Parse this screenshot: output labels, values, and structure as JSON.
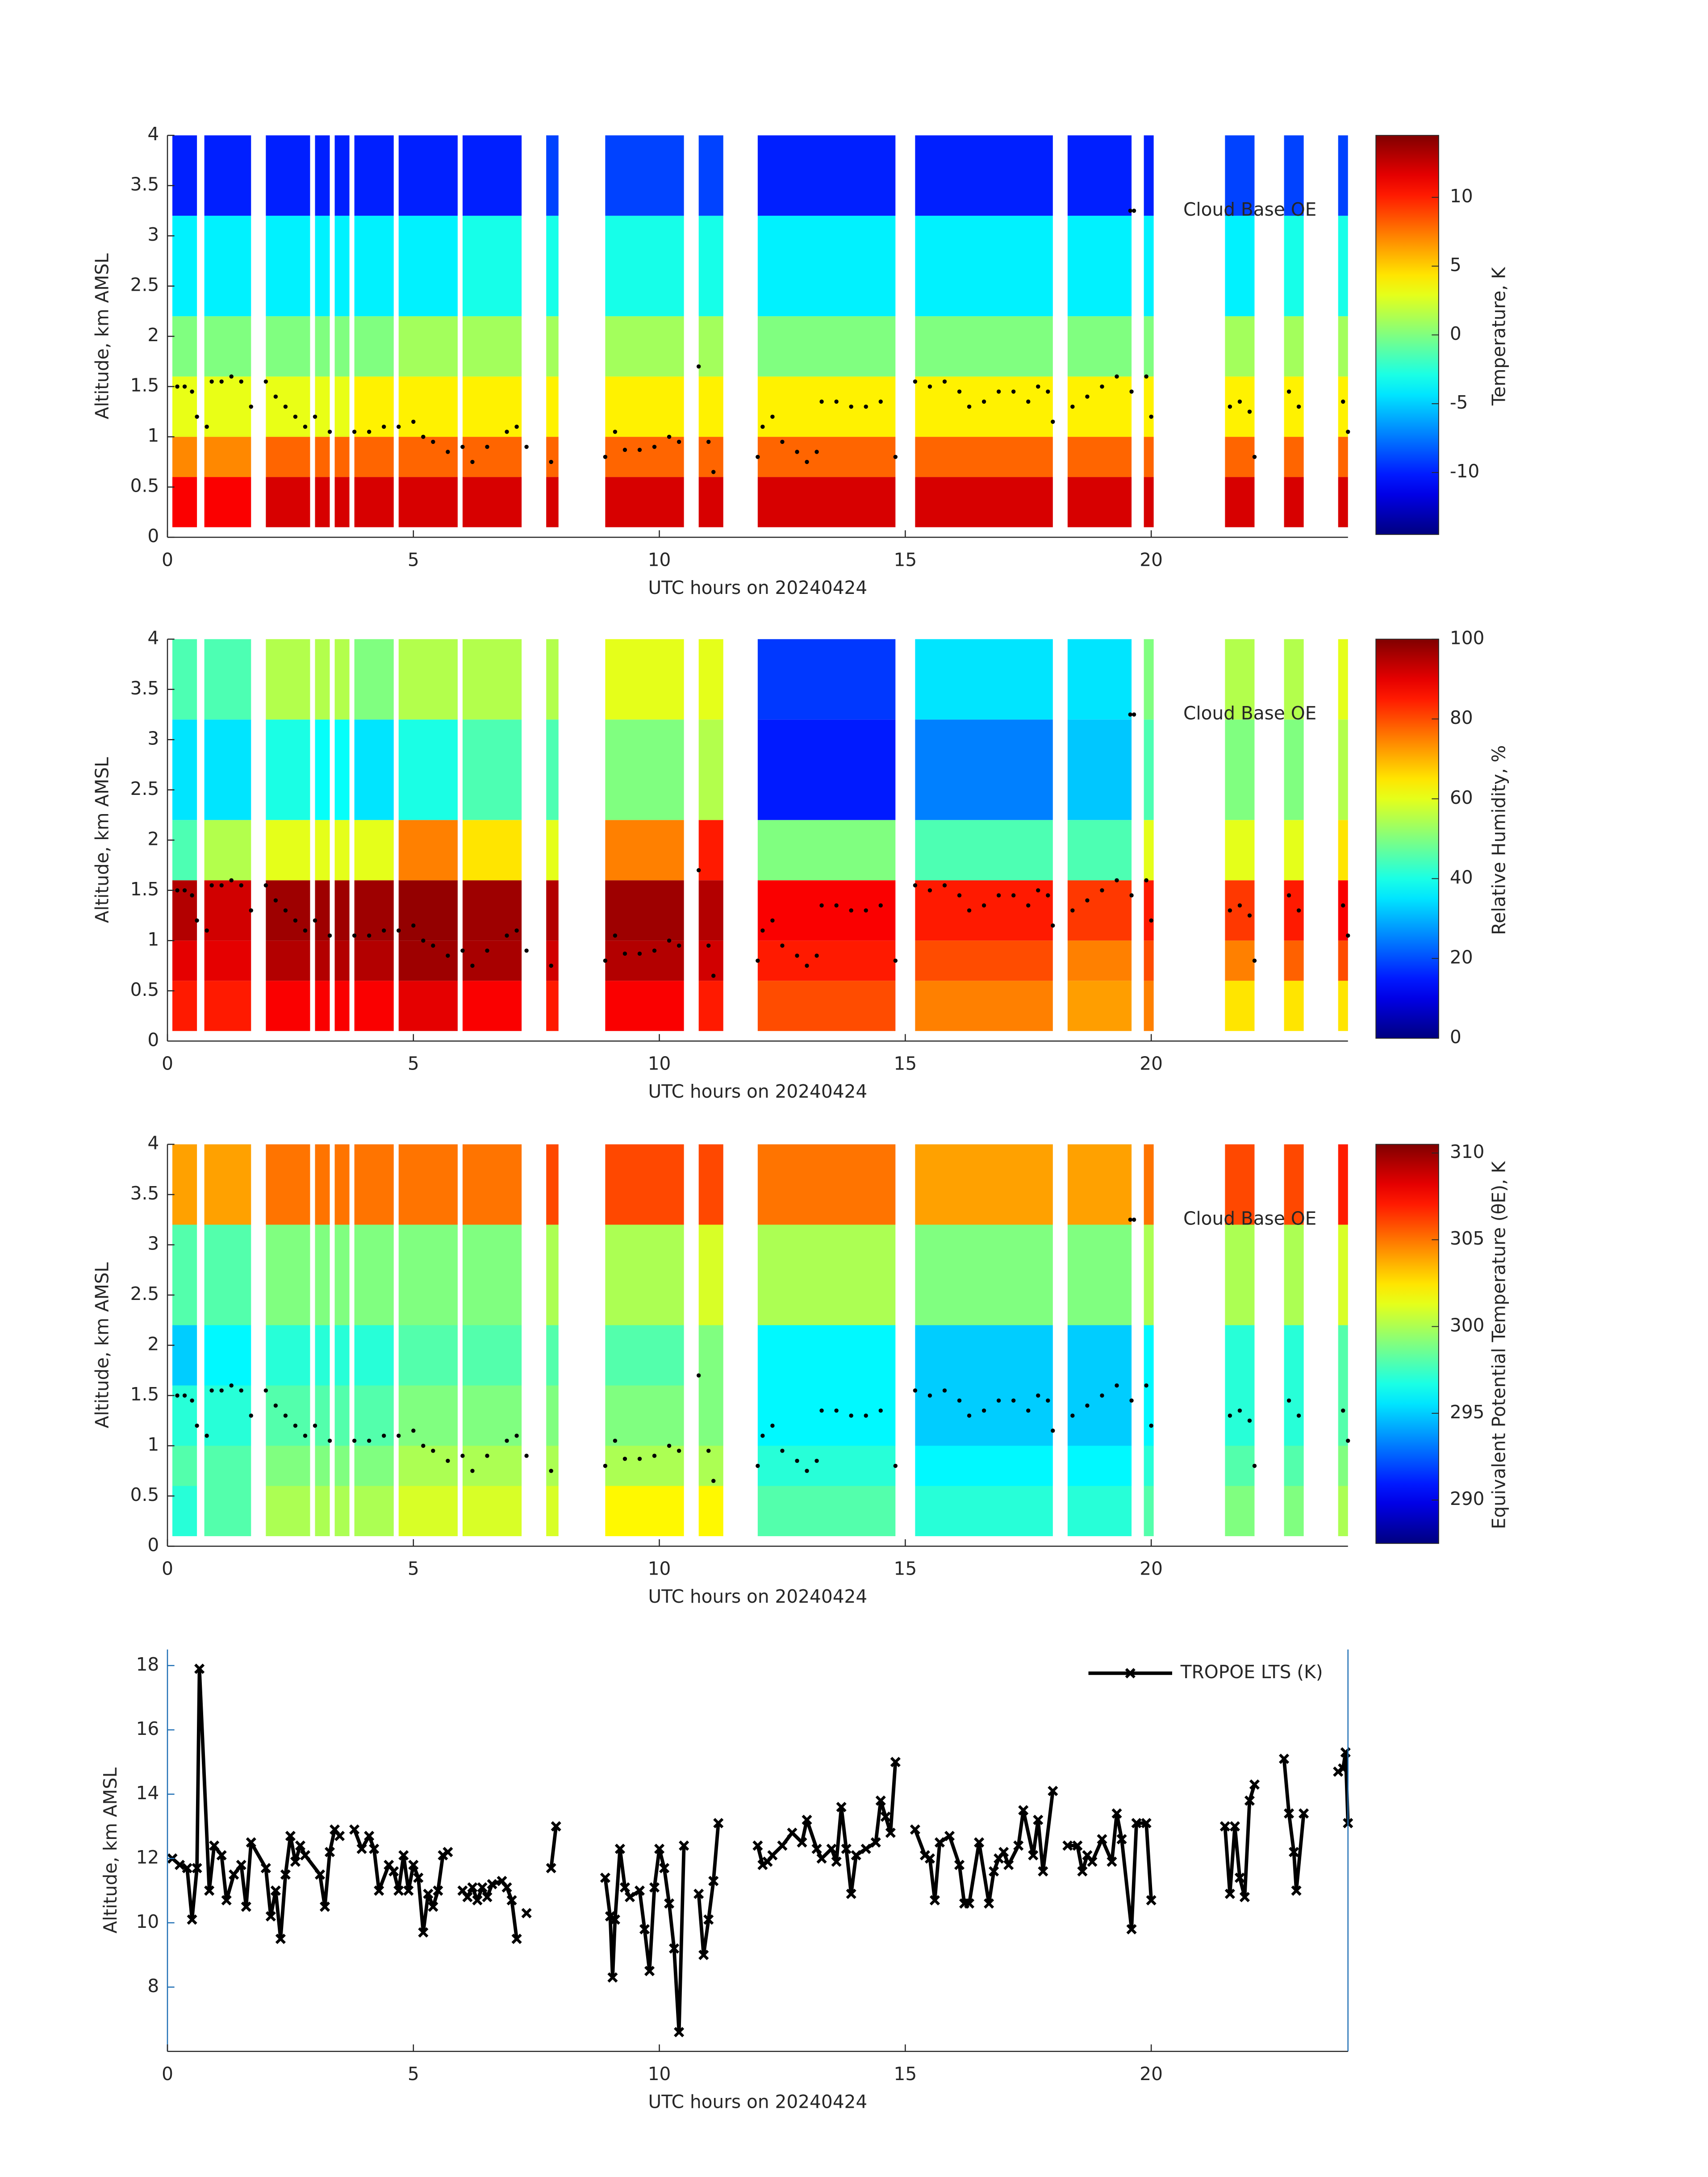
{
  "time_segments": [
    [
      0.1,
      0.6
    ],
    [
      0.75,
      1.7
    ],
    [
      2.0,
      2.9
    ],
    [
      3.0,
      3.3
    ],
    [
      3.4,
      3.7
    ],
    [
      3.8,
      4.6
    ],
    [
      4.7,
      5.9
    ],
    [
      6.0,
      7.2
    ],
    [
      7.7,
      7.95
    ],
    [
      8.9,
      10.5
    ],
    [
      10.8,
      11.3
    ],
    [
      12.0,
      14.8
    ],
    [
      15.2,
      18.0
    ],
    [
      18.3,
      19.6
    ],
    [
      19.85,
      20.05
    ],
    [
      21.5,
      22.1
    ],
    [
      22.7,
      23.1
    ],
    [
      23.8,
      24.0
    ]
  ],
  "altitude_edges": [
    0.1,
    0.6,
    1.0,
    1.6,
    2.2,
    3.2,
    4.0
  ],
  "cloud_base": {
    "name": "Cloud Base OE",
    "x": [
      0.2,
      0.35,
      0.5,
      0.6,
      0.8,
      0.9,
      1.1,
      1.3,
      1.5,
      1.7,
      2.0,
      2.2,
      2.4,
      2.6,
      2.8,
      3.0,
      3.3,
      3.8,
      4.1,
      4.4,
      4.7,
      5.0,
      5.2,
      5.4,
      5.7,
      6.0,
      6.2,
      6.5,
      6.9,
      7.1,
      7.3,
      7.8,
      8.9,
      9.1,
      9.3,
      9.6,
      9.9,
      10.2,
      10.4,
      10.8,
      11.0,
      11.1,
      12.0,
      12.1,
      12.3,
      12.5,
      12.8,
      13.0,
      13.2,
      13.3,
      13.6,
      13.9,
      14.2,
      14.5,
      14.8,
      15.2,
      15.5,
      15.8,
      16.1,
      16.3,
      16.6,
      16.9,
      17.2,
      17.5,
      17.7,
      17.9,
      18.0,
      18.4,
      18.7,
      19.0,
      19.3,
      19.6,
      19.65,
      19.9,
      20.0,
      21.6,
      21.8,
      22.0,
      22.1,
      22.8,
      23.0,
      23.9,
      24.0
    ],
    "values": [
      1.5,
      1.5,
      1.45,
      1.2,
      1.1,
      1.55,
      1.55,
      1.6,
      1.55,
      1.3,
      1.55,
      1.4,
      1.3,
      1.2,
      1.1,
      1.2,
      1.05,
      1.05,
      1.05,
      1.1,
      1.1,
      1.15,
      1.0,
      0.95,
      0.85,
      0.9,
      0.75,
      0.9,
      1.05,
      1.1,
      0.9,
      0.75,
      0.8,
      1.05,
      0.87,
      0.87,
      0.9,
      1.0,
      0.95,
      1.7,
      0.95,
      0.65,
      0.8,
      1.1,
      1.2,
      0.95,
      0.85,
      0.75,
      0.85,
      1.35,
      1.35,
      1.3,
      1.3,
      1.35,
      0.8,
      1.55,
      1.5,
      1.55,
      1.45,
      1.3,
      1.35,
      1.45,
      1.45,
      1.35,
      1.5,
      1.45,
      1.15,
      1.3,
      1.4,
      1.5,
      1.6,
      1.45,
      3.25,
      1.6,
      1.2,
      1.3,
      1.35,
      1.25,
      0.8,
      1.45,
      1.3,
      1.35,
      1.05
    ]
  },
  "chart_data": [
    {
      "type": "heatmap",
      "xlabel": "UTC hours on 20240424",
      "ylabel": "Altitude, km AMSL",
      "colorbar_label": "Temperature, K",
      "colormap": "jet",
      "legend": "upper right",
      "xlim": [
        0,
        24
      ],
      "xticks": [
        0,
        5,
        10,
        15,
        20
      ],
      "ylim": [
        0,
        4
      ],
      "yticks": [
        0,
        0.5,
        1,
        1.5,
        2,
        2.5,
        3,
        3.5,
        4
      ],
      "clim": [
        -14.5,
        14.5
      ],
      "cticks": [
        -10,
        -5,
        0,
        5,
        10
      ],
      "values": [
        [
          11,
          7,
          3,
          0,
          -4,
          -10
        ],
        [
          11,
          7,
          3,
          0,
          -4,
          -10
        ],
        [
          12,
          8,
          3,
          0,
          -4,
          -10
        ],
        [
          12,
          8,
          3,
          0,
          -4,
          -10
        ],
        [
          12,
          8,
          3,
          0,
          -4,
          -10
        ],
        [
          12,
          8,
          4,
          0,
          -4,
          -10
        ],
        [
          12,
          8,
          4,
          1,
          -4,
          -10
        ],
        [
          12,
          8,
          4,
          1,
          -3,
          -10
        ],
        [
          12,
          8,
          4,
          1,
          -3,
          -9
        ],
        [
          12,
          8,
          4,
          1,
          -3,
          -9
        ],
        [
          12,
          8,
          4,
          1,
          -3,
          -9
        ],
        [
          12,
          8,
          4,
          0,
          -4,
          -10
        ],
        [
          12,
          8,
          4,
          0,
          -4,
          -10
        ],
        [
          12,
          8,
          4,
          0,
          -4,
          -10
        ],
        [
          12,
          8,
          4,
          0,
          -4,
          -10
        ],
        [
          12,
          8,
          4,
          1,
          -4,
          -9
        ],
        [
          12,
          8,
          4,
          1,
          -3,
          -9
        ],
        [
          12,
          8,
          4,
          1,
          -3,
          -9
        ]
      ]
    },
    {
      "type": "heatmap",
      "xlabel": "UTC hours on 20240424",
      "ylabel": "Altitude, km AMSL",
      "colorbar_label": "Relative Humidity, %",
      "colormap": "jet",
      "legend": "upper right",
      "xlim": [
        0,
        24
      ],
      "xticks": [
        0,
        5,
        10,
        15,
        20
      ],
      "ylim": [
        0,
        4
      ],
      "yticks": [
        0,
        0.5,
        1,
        1.5,
        2,
        2.5,
        3,
        3.5,
        4
      ],
      "clim": [
        0,
        100
      ],
      "cticks": [
        0,
        20,
        40,
        60,
        80,
        100
      ],
      "values": [
        [
          85,
          90,
          95,
          45,
          35,
          45
        ],
        [
          85,
          90,
          92,
          55,
          35,
          45
        ],
        [
          88,
          95,
          97,
          60,
          40,
          55
        ],
        [
          88,
          95,
          97,
          60,
          38,
          55
        ],
        [
          88,
          95,
          97,
          60,
          38,
          55
        ],
        [
          88,
          95,
          97,
          60,
          35,
          50
        ],
        [
          90,
          97,
          98,
          75,
          40,
          55
        ],
        [
          88,
          96,
          97,
          65,
          45,
          55
        ],
        [
          85,
          92,
          95,
          60,
          45,
          55
        ],
        [
          88,
          95,
          97,
          75,
          50,
          60
        ],
        [
          85,
          92,
          95,
          85,
          55,
          60
        ],
        [
          80,
          85,
          88,
          50,
          15,
          18
        ],
        [
          75,
          80,
          85,
          45,
          25,
          35
        ],
        [
          72,
          75,
          82,
          45,
          32,
          35
        ],
        [
          75,
          80,
          85,
          60,
          45,
          50
        ],
        [
          65,
          75,
          82,
          60,
          50,
          55
        ],
        [
          65,
          78,
          85,
          60,
          50,
          55
        ],
        [
          65,
          80,
          88,
          65,
          55,
          60
        ]
      ]
    },
    {
      "type": "heatmap",
      "xlabel": "UTC hours on 20240424",
      "ylabel": "Altitude, km AMSL",
      "colorbar_label": "Equivalent Potential Temperature (θE), K",
      "colormap": "jet",
      "legend": "upper right",
      "xlim": [
        0,
        24
      ],
      "xticks": [
        0,
        5,
        10,
        15,
        20
      ],
      "ylim": [
        0,
        4
      ],
      "yticks": [
        0,
        0.5,
        1,
        1.5,
        2,
        2.5,
        3,
        3.5,
        4
      ],
      "clim": [
        287.5,
        310.5
      ],
      "cticks": [
        290,
        295,
        300,
        305,
        310
      ],
      "values": [
        [
          297,
          298,
          297,
          295,
          298,
          304
        ],
        [
          298,
          298,
          297,
          296,
          298,
          304
        ],
        [
          300,
          299,
          298,
          297,
          299,
          305
        ],
        [
          300,
          299,
          298,
          297,
          299,
          305
        ],
        [
          300,
          299,
          298,
          297,
          299,
          305
        ],
        [
          300,
          299,
          298,
          297,
          299,
          305
        ],
        [
          301,
          300,
          299,
          298,
          299,
          305
        ],
        [
          301,
          300,
          299,
          298,
          299,
          305
        ],
        [
          301,
          300,
          299,
          298,
          300,
          306
        ],
        [
          302,
          300,
          299,
          298,
          300,
          306
        ],
        [
          302,
          300,
          299,
          299,
          301,
          306
        ],
        [
          298,
          297,
          296,
          296,
          300,
          305
        ],
        [
          297,
          296,
          295,
          295,
          299,
          304
        ],
        [
          297,
          296,
          295,
          295,
          299,
          304
        ],
        [
          298,
          297,
          296,
          296,
          300,
          305
        ],
        [
          299,
          298,
          297,
          297,
          300,
          306
        ],
        [
          299,
          298,
          297,
          297,
          300,
          306
        ],
        [
          300,
          299,
          298,
          298,
          301,
          307
        ]
      ]
    },
    {
      "type": "line",
      "xlabel": "UTC hours on 20240424",
      "ylabel": "Altitude, km AMSL",
      "legend": "upper right",
      "xlim": [
        0,
        24
      ],
      "xticks": [
        0,
        5,
        10,
        15,
        20
      ],
      "ylim": [
        6,
        18.5
      ],
      "yticks": [
        8,
        10,
        12,
        14,
        16,
        18
      ],
      "series": [
        {
          "name": "TROPOE LTS (K)",
          "color": "#000000",
          "x": [
            0.1,
            0.25,
            0.4,
            0.5,
            0.6,
            0.65,
            0.85,
            0.95,
            1.1,
            1.2,
            1.35,
            1.5,
            1.6,
            1.7,
            2.0,
            2.1,
            2.2,
            2.3,
            2.4,
            2.5,
            2.6,
            2.7,
            2.8,
            3.1,
            3.2,
            3.3,
            3.4,
            3.5,
            3.6,
            3.8,
            3.95,
            4.1,
            4.2,
            4.3,
            4.5,
            4.6,
            4.7,
            4.8,
            4.9,
            5.0,
            5.1,
            5.2,
            5.3,
            5.4,
            5.5,
            5.6,
            5.7,
            5.8,
            6.0,
            6.1,
            6.2,
            6.3,
            6.4,
            6.5,
            6.6,
            6.8,
            6.9,
            7.0,
            7.1,
            7.2,
            7.3,
            7.5,
            7.8,
            7.9,
            8.4,
            8.9,
            9.0,
            9.05,
            9.1,
            9.2,
            9.3,
            9.4,
            9.6,
            9.7,
            9.8,
            9.9,
            10.0,
            10.1,
            10.2,
            10.3,
            10.4,
            10.5,
            10.6,
            10.8,
            10.9,
            11.0,
            11.1,
            11.2,
            11.6,
            12.0,
            12.1,
            12.2,
            12.3,
            12.5,
            12.7,
            12.9,
            13.0,
            13.2,
            13.3,
            13.5,
            13.6,
            13.7,
            13.8,
            13.9,
            14.0,
            14.2,
            14.4,
            14.5,
            14.6,
            14.7,
            14.8,
            15.0,
            15.2,
            15.4,
            15.5,
            15.6,
            15.7,
            15.9,
            16.1,
            16.2,
            16.3,
            16.5,
            16.7,
            16.8,
            16.9,
            17.0,
            17.1,
            17.3,
            17.4,
            17.6,
            17.7,
            17.8,
            18.0,
            18.2,
            18.3,
            18.5,
            18.6,
            18.7,
            18.8,
            19.0,
            19.2,
            19.3,
            19.4,
            19.6,
            19.7,
            19.9,
            20.0,
            20.5,
            21.5,
            21.6,
            21.7,
            21.8,
            21.9,
            22.0,
            22.1,
            22.3,
            22.7,
            22.8,
            22.9,
            22.95,
            23.1,
            23.5,
            23.8,
            23.9,
            23.95,
            24.0
          ],
          "values": [
            12.0,
            11.8,
            11.7,
            10.1,
            11.7,
            17.9,
            11.0,
            12.4,
            12.1,
            10.7,
            11.5,
            11.8,
            10.5,
            12.5,
            11.7,
            10.2,
            11.0,
            9.5,
            11.5,
            12.7,
            11.9,
            12.4,
            12.1,
            11.5,
            10.5,
            12.2,
            12.9,
            12.7,
            null,
            12.9,
            12.3,
            12.7,
            12.3,
            11.0,
            11.8,
            11.6,
            11.0,
            12.1,
            11.0,
            11.8,
            11.4,
            9.7,
            10.9,
            10.5,
            11.0,
            12.1,
            12.2,
            null,
            11.0,
            10.8,
            11.1,
            10.7,
            11.1,
            10.8,
            11.2,
            11.3,
            11.1,
            10.7,
            9.5,
            null,
            10.3,
            null,
            11.7,
            13.0,
            null,
            11.4,
            10.2,
            8.3,
            10.1,
            12.3,
            11.1,
            10.8,
            11.0,
            9.8,
            8.5,
            11.1,
            12.3,
            11.7,
            10.6,
            9.2,
            6.6,
            12.4,
            null,
            10.9,
            9.0,
            10.1,
            11.3,
            13.1,
            null,
            12.4,
            11.8,
            11.9,
            12.1,
            12.4,
            12.8,
            12.5,
            13.2,
            12.3,
            12.0,
            12.3,
            11.9,
            13.6,
            12.3,
            10.9,
            12.1,
            12.3,
            12.5,
            13.8,
            13.3,
            12.8,
            15.0,
            null,
            12.9,
            12.1,
            12.0,
            10.7,
            12.5,
            12.7,
            11.8,
            10.6,
            10.6,
            12.5,
            10.6,
            11.6,
            12.0,
            12.2,
            11.8,
            12.4,
            13.5,
            12.1,
            13.2,
            11.6,
            14.1,
            null,
            12.4,
            12.4,
            11.6,
            12.1,
            11.9,
            12.6,
            11.9,
            13.4,
            12.6,
            9.8,
            13.1,
            13.1,
            10.7,
            null,
            13.0,
            10.9,
            13.0,
            11.4,
            10.8,
            13.8,
            14.3,
            null,
            15.1,
            13.4,
            12.2,
            11.0,
            13.4,
            null,
            14.7,
            14.8,
            15.3,
            13.1
          ]
        }
      ]
    }
  ]
}
